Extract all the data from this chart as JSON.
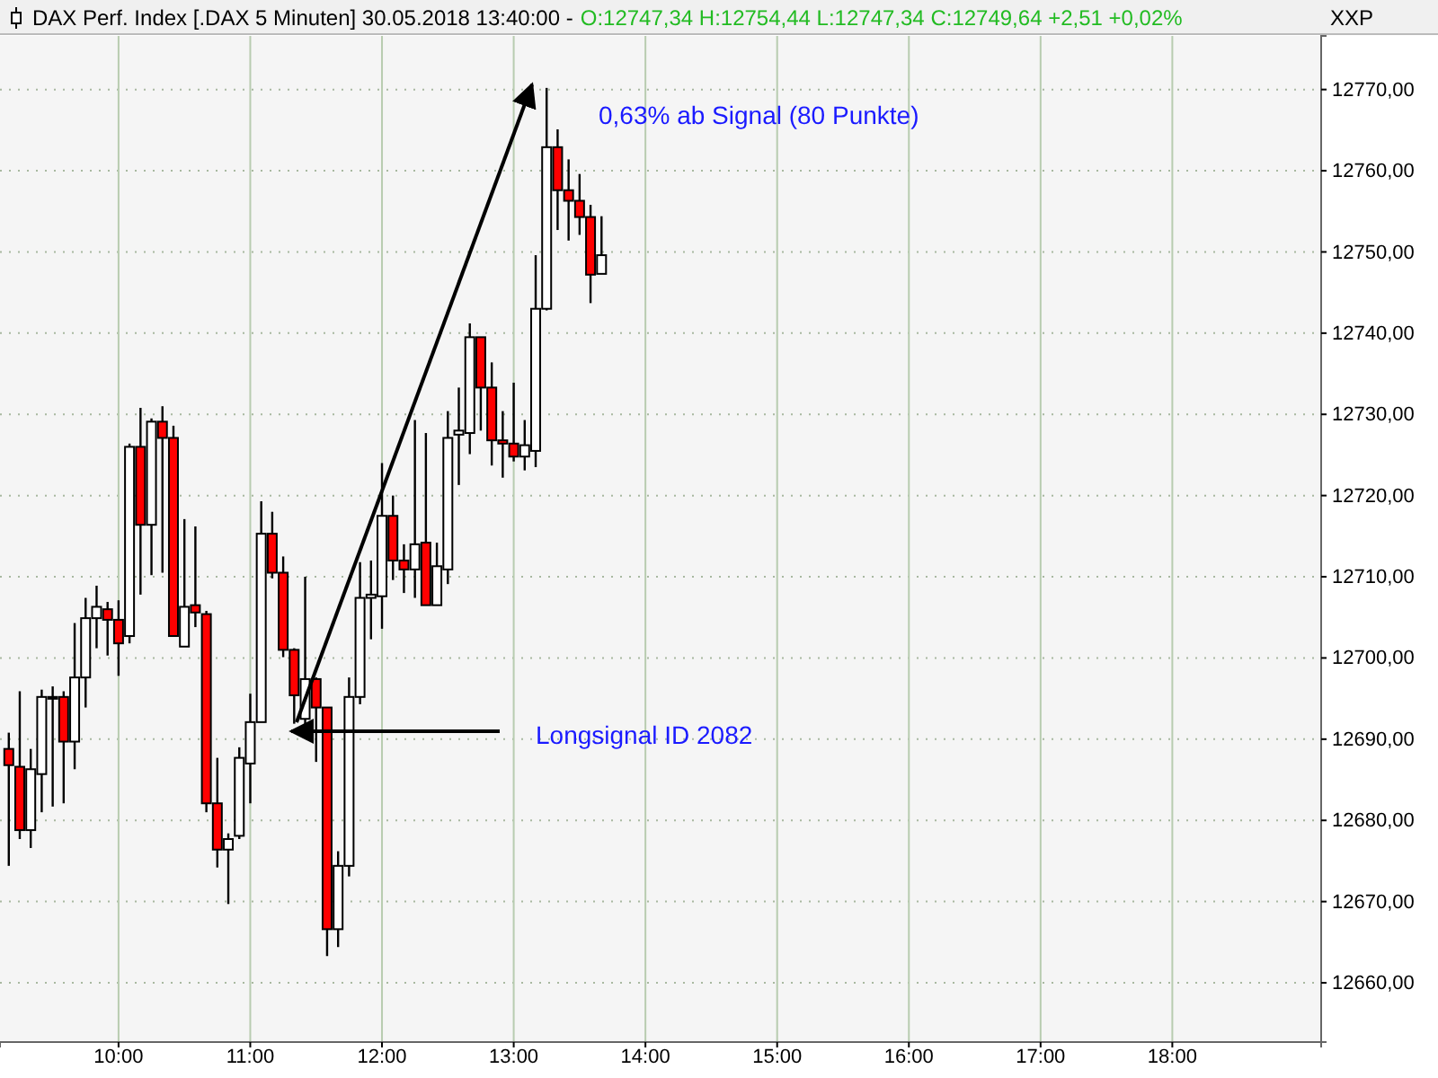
{
  "chart_data": {
    "type": "candlestick",
    "title": "DAX Perf. Index [.DAX  5 Minuten] 30.05.2018 13:40:00 -",
    "subtitle": "O:12747,34 H:12754,44 L:12747,34 C:12749,64 +2,51 +0,02%",
    "ylabel": "XXP",
    "x": [
      9.1667,
      9.25,
      9.3333,
      9.4167,
      9.5,
      9.5833,
      9.6667,
      9.75,
      9.8333,
      9.9167,
      10,
      10.0833,
      10.1667,
      10.25,
      10.3333,
      10.4167,
      10.5,
      10.5833,
      10.6667,
      10.75,
      10.8333,
      10.9167,
      11,
      11.0833,
      11.1667,
      11.25,
      11.3333,
      11.4167,
      11.5,
      11.5833,
      11.6667,
      11.75,
      11.8333,
      11.9167,
      12,
      12.0833,
      12.1667,
      12.25,
      12.3333,
      12.4167,
      12.5,
      12.5833,
      12.6667,
      12.75,
      12.8333,
      12.9167,
      13,
      13.0833,
      13.1667,
      13.25,
      13.3333,
      13.4167,
      13.5,
      13.5833,
      13.6667
    ],
    "ohlc": [
      [
        12688.8,
        12690.8,
        12674.4,
        12686.8
      ],
      [
        12686.6,
        12695.9,
        12677.7,
        12678.8
      ],
      [
        12678.8,
        12688.8,
        12676.6,
        12686.3
      ],
      [
        12685.7,
        12696.1,
        12681.0,
        12695.2
      ],
      [
        12695.2,
        12696.5,
        12681.7,
        12695.2
      ],
      [
        12695.2,
        12695.9,
        12682.1,
        12689.7
      ],
      [
        12689.7,
        12704.3,
        12686.3,
        12697.6
      ],
      [
        12697.6,
        12707.4,
        12693.9,
        12704.9
      ],
      [
        12704.9,
        12708.9,
        12701.2,
        12706.3
      ],
      [
        12706.0,
        12706.9,
        12700.3,
        12704.7
      ],
      [
        12704.7,
        12707.1,
        12697.8,
        12701.8
      ],
      [
        12702.7,
        12726.4,
        12701.8,
        12726.0
      ],
      [
        12726.0,
        12730.8,
        12707.8,
        12716.4
      ],
      [
        12716.4,
        12729.5,
        12710.2,
        12729.1
      ],
      [
        12729.1,
        12731.0,
        12710.5,
        12727.1
      ],
      [
        12727.1,
        12728.6,
        12702.7,
        12702.7
      ],
      [
        12701.4,
        12717.1,
        12701.4,
        12706.3
      ],
      [
        12706.5,
        12716.2,
        12703.8,
        12705.6
      ],
      [
        12705.4,
        12705.8,
        12681.0,
        12682.1
      ],
      [
        12682.1,
        12687.7,
        12674.2,
        12676.4
      ],
      [
        12676.4,
        12678.4,
        12669.7,
        12677.7
      ],
      [
        12678.1,
        12689.0,
        12677.7,
        12687.7
      ],
      [
        12687.0,
        12695.6,
        12682.1,
        12692.1
      ],
      [
        12692.1,
        12719.3,
        12692.1,
        12715.3
      ],
      [
        12715.3,
        12718.0,
        12709.8,
        12710.5
      ],
      [
        12710.5,
        12712.5,
        12700.1,
        12701.0
      ],
      [
        12701.0,
        12701.2,
        12691.9,
        12695.4
      ],
      [
        12692.5,
        12710.0,
        12691.0,
        12697.4
      ],
      [
        12697.4,
        12697.6,
        12687.2,
        12693.9
      ],
      [
        12693.9,
        12693.9,
        12663.3,
        12666.6
      ],
      [
        12666.6,
        12676.2,
        12664.4,
        12674.4
      ],
      [
        12674.4,
        12697.6,
        12673.1,
        12695.2
      ],
      [
        12695.2,
        12711.8,
        12694.3,
        12707.4
      ],
      [
        12707.4,
        12712.0,
        12702.3,
        12707.8
      ],
      [
        12707.6,
        12724.0,
        12703.6,
        12717.5
      ],
      [
        12717.5,
        12720.0,
        12709.6,
        12712.0
      ],
      [
        12712.0,
        12714.0,
        12708.0,
        12710.9
      ],
      [
        12710.9,
        12729.3,
        12707.4,
        12714.0
      ],
      [
        12714.2,
        12727.7,
        12706.5,
        12706.5
      ],
      [
        12706.5,
        12714.2,
        12706.5,
        12711.3
      ],
      [
        12710.9,
        12730.4,
        12709.1,
        12727.1
      ],
      [
        12727.5,
        12733.3,
        12721.3,
        12728.0
      ],
      [
        12727.7,
        12741.2,
        12725.1,
        12739.5
      ],
      [
        12739.5,
        12739.5,
        12728.0,
        12733.3
      ],
      [
        12733.3,
        12736.4,
        12723.7,
        12726.8
      ],
      [
        12726.8,
        12730.4,
        12722.2,
        12726.4
      ],
      [
        12726.4,
        12733.9,
        12724.2,
        12724.8
      ],
      [
        12724.8,
        12729.3,
        12723.1,
        12726.2
      ],
      [
        12725.5,
        12749.6,
        12723.5,
        12743.0
      ],
      [
        12743.0,
        12770.2,
        12742.8,
        12762.9
      ],
      [
        12762.9,
        12765.1,
        12752.7,
        12757.6
      ],
      [
        12757.6,
        12761.4,
        12751.4,
        12756.3
      ],
      [
        12756.3,
        12759.6,
        12752.1,
        12754.3
      ],
      [
        12754.3,
        12755.8,
        12743.7,
        12747.2
      ],
      [
        12747.3,
        12754.4,
        12747.3,
        12749.6
      ]
    ],
    "xlim": [
      9.1,
      19.13
    ],
    "xticks": [
      {
        "value": 10,
        "label": "10:00"
      },
      {
        "value": 11,
        "label": "11:00"
      },
      {
        "value": 12,
        "label": "12:00"
      },
      {
        "value": 13,
        "label": "13:00"
      },
      {
        "value": 14,
        "label": "14:00"
      },
      {
        "value": 15,
        "label": "15:00"
      },
      {
        "value": 16,
        "label": "16:00"
      },
      {
        "value": 17,
        "label": "17:00"
      },
      {
        "value": 18,
        "label": "18:00"
      }
    ],
    "ylim": [
      12652.7,
      12776.6
    ],
    "yticks": [
      {
        "value": 12660,
        "label": "12660,00"
      },
      {
        "value": 12670,
        "label": "12670,00"
      },
      {
        "value": 12680,
        "label": "12680,00"
      },
      {
        "value": 12690,
        "label": "12690,00"
      },
      {
        "value": 12700,
        "label": "12700,00"
      },
      {
        "value": 12710,
        "label": "12710,00"
      },
      {
        "value": 12720,
        "label": "12720,00"
      },
      {
        "value": 12730,
        "label": "12730,00"
      },
      {
        "value": 12740,
        "label": "12740,00"
      },
      {
        "value": 12750,
        "label": "12750,00"
      },
      {
        "value": 12760,
        "label": "12760,00"
      },
      {
        "value": 12770,
        "label": "12770,00"
      }
    ],
    "annotations": [
      "0,63% ab Signal (80 Punkte)",
      "Longsignal ID 2082"
    ],
    "grid": true
  }
}
